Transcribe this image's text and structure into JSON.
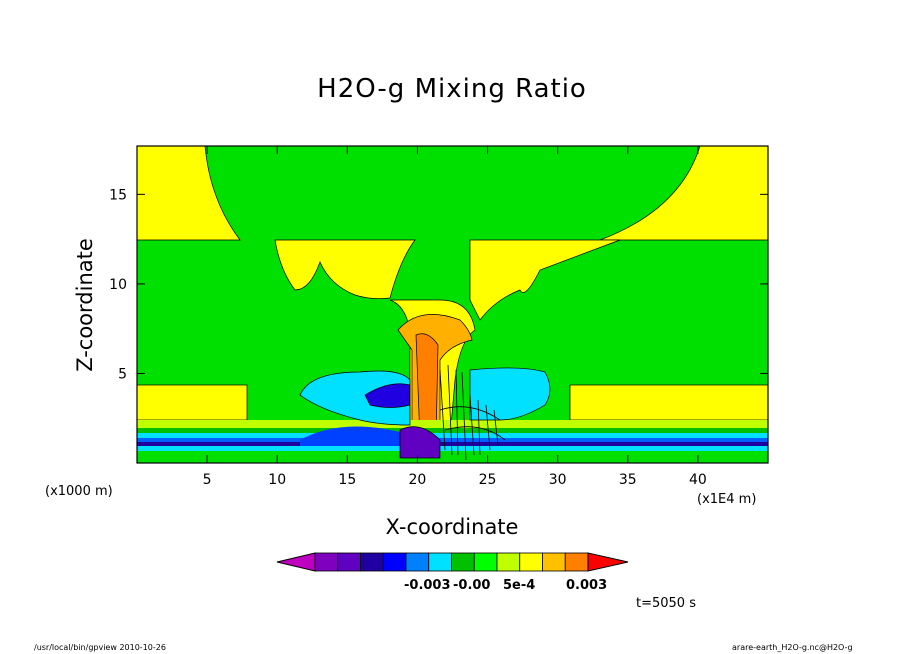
{
  "chart_data": {
    "type": "heatmap",
    "title": "H2O-g Mixing Ratio",
    "xlabel": "X-coordinate",
    "ylabel": "Z-coordinate",
    "x_unit": "(x1E4 m)",
    "y_unit": "(x1000 m)",
    "xlim": [
      0,
      45
    ],
    "ylim": [
      0,
      17.7
    ],
    "x_ticks": [
      "5",
      "10",
      "15",
      "20",
      "25",
      "30",
      "35",
      "40"
    ],
    "y_ticks": [
      "5",
      "10",
      "15"
    ],
    "colorbar_labels": [
      "-0.003",
      "-0.00",
      "5e-4",
      "0.003"
    ],
    "colorbar_colors": [
      "#c000c0",
      "#8000c0",
      "#6000c0",
      "#2000a0",
      "#0000ff",
      "#0080ff",
      "#00e0ff",
      "#00c000",
      "#00ff00",
      "#c0ff00",
      "#ffff00",
      "#ffc000",
      "#ff8000",
      "#ff0000"
    ],
    "time_label": "t=5050 s",
    "grid": false
  },
  "footer": {
    "left": "/usr/local/bin/gpview  2010-10-26",
    "right": "arare-earth_H2O-g.nc@H2O-g"
  }
}
